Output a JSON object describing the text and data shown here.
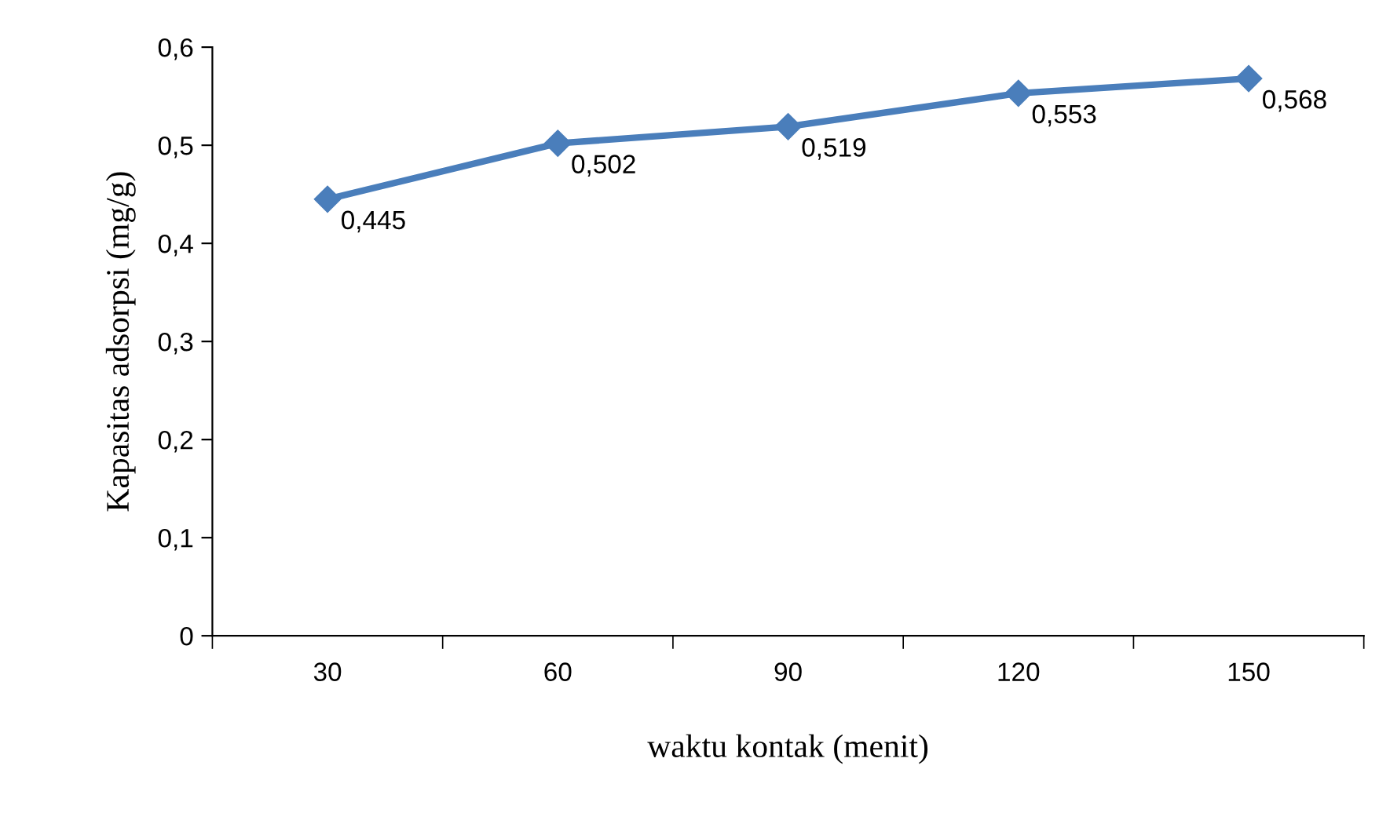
{
  "chart_data": {
    "type": "line",
    "xlabel": "waktu kontak (menit)",
    "ylabel": "Kapasitas adsorpsi (mg/g)",
    "categories": [
      "30",
      "60",
      "90",
      "120",
      "150"
    ],
    "series": [
      {
        "color": "#4a7ebb",
        "values": [
          0.445,
          0.502,
          0.519,
          0.553,
          0.568
        ],
        "value_labels": [
          "0,445",
          "0,502",
          "0,519",
          "0,553",
          "0,568"
        ]
      }
    ],
    "ylim": [
      0,
      0.6
    ],
    "yticks": [
      0,
      {
        "value": 0.1,
        "label": "0,1"
      },
      {
        "value": 0.2,
        "label": "0,2"
      },
      {
        "value": 0.3,
        "label": "0,3"
      },
      {
        "value": 0.4,
        "label": "0,4"
      },
      {
        "value": 0.5,
        "label": "0,5"
      },
      {
        "value": 0.6,
        "label": "0,6"
      }
    ],
    "grid": false,
    "marker": "diamond",
    "line_style": "solid"
  }
}
